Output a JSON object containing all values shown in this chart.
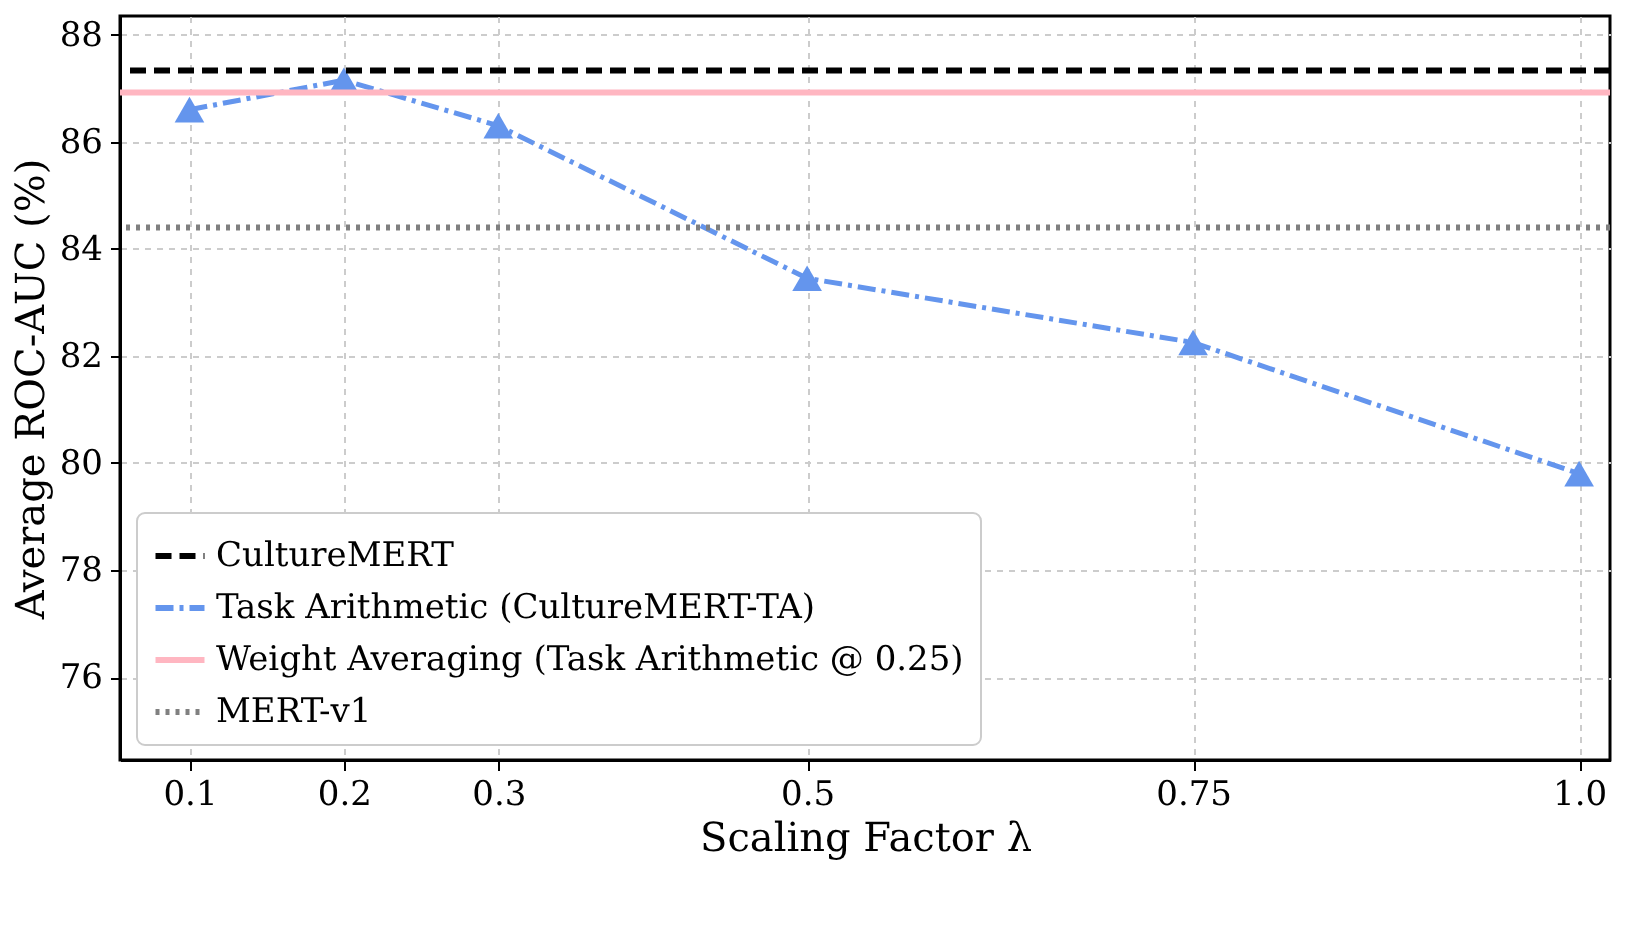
{
  "chart_data": {
    "type": "line",
    "xlabel": "Scaling Factor λ",
    "ylabel": "Average ROC-AUC (%)",
    "x": [
      0.1,
      0.2,
      0.3,
      0.5,
      0.75,
      1.0
    ],
    "series": [
      {
        "name": "Task Arithmetic (CultureMERT-TA)",
        "color": "#6495ed",
        "values": [
          86.6,
          87.15,
          86.3,
          83.45,
          82.25,
          79.8
        ],
        "marker": "triangle",
        "line_style": "dashdot"
      }
    ],
    "ref_lines": [
      {
        "axis": "y",
        "value": 87.33,
        "label": "CultureMERT",
        "color": "#000000",
        "line_style": "dashed"
      },
      {
        "axis": "y",
        "value": 86.92,
        "label": "Weight Averaging (Task Arithmetic @ 0.25)",
        "color": "#ffb6c1",
        "line_style": "solid"
      },
      {
        "axis": "y",
        "value": 84.4,
        "label": "MERT-v1",
        "color": "#808080",
        "line_style": "dotted"
      }
    ],
    "xlim": [
      0.055,
      1.02
    ],
    "xticks": [
      0.1,
      0.2,
      0.3,
      0.5,
      0.75,
      {
        "value": 1.0,
        "label": "1.0"
      }
    ],
    "ylim": [
      74.45,
      88.35
    ],
    "yticks": [
      76,
      78,
      80,
      82,
      84,
      86,
      88
    ],
    "grid": true,
    "legend": "bottom left"
  }
}
